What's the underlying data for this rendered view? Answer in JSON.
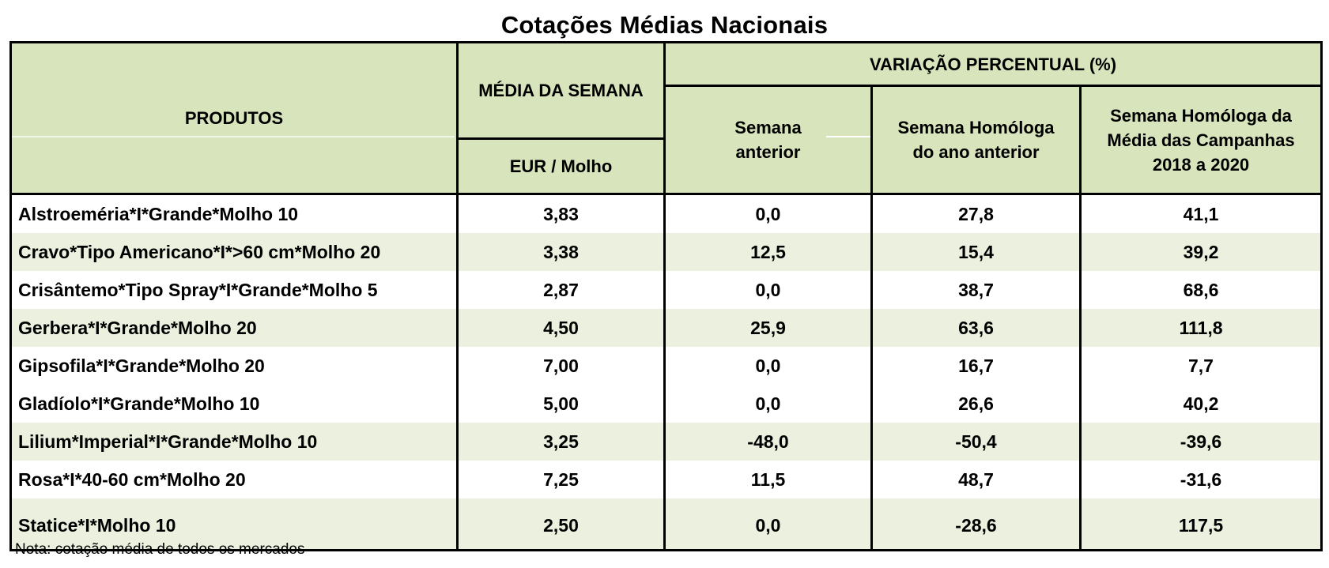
{
  "title": "Cotações Médias Nacionais",
  "header": {
    "produtos": "PRODUTOS",
    "media_semana": "MÉDIA DA SEMANA",
    "unidade": "EUR / Molho",
    "variacao": "VARIAÇÃO PERCENTUAL (%)",
    "semana_anterior_l1": "Semana",
    "semana_anterior_l2": "anterior",
    "homologa_l1": "Semana Homóloga",
    "homologa_l2": "do ano anterior",
    "campanhas_l1": "Semana Homóloga da",
    "campanhas_l2": "Média das Campanhas",
    "campanhas_l3": "2018 a 2020"
  },
  "rows": [
    {
      "produto": "Alstroeméria*I*Grande*Molho 10",
      "media": "3,83",
      "anterior": "0,0",
      "homologa": "27,8",
      "campanhas": "41,1"
    },
    {
      "produto": "Cravo*Tipo Americano*I*>60 cm*Molho 20",
      "media": "3,38",
      "anterior": "12,5",
      "homologa": "15,4",
      "campanhas": "39,2"
    },
    {
      "produto": "Crisântemo*Tipo Spray*I*Grande*Molho 5",
      "media": "2,87",
      "anterior": "0,0",
      "homologa": "38,7",
      "campanhas": "68,6"
    },
    {
      "produto": "Gerbera*I*Grande*Molho 20",
      "media": "4,50",
      "anterior": "25,9",
      "homologa": "63,6",
      "campanhas": "111,8"
    },
    {
      "produto": "Gipsofila*I*Grande*Molho 20",
      "media": "7,00",
      "anterior": "0,0",
      "homologa": "16,7",
      "campanhas": "7,7"
    },
    {
      "produto": "Gladíolo*I*Grande*Molho 10",
      "media": "5,00",
      "anterior": "0,0",
      "homologa": "26,6",
      "campanhas": "40,2"
    },
    {
      "produto": "Lilium*Imperial*I*Grande*Molho 10",
      "media": "3,25",
      "anterior": "-48,0",
      "homologa": "-50,4",
      "campanhas": "-39,6"
    },
    {
      "produto": "Rosa*I*40-60 cm*Molho 20",
      "media": "7,25",
      "anterior": "11,5",
      "homologa": "48,7",
      "campanhas": "-31,6"
    },
    {
      "produto": "Statice*I*Molho 10",
      "media": "2,50",
      "anterior": "0,0",
      "homologa": "-28,6",
      "campanhas": "117,5"
    }
  ],
  "note": "Nota: cotação média de todos os mercados",
  "colors": {
    "header_bg": "#d8e4bc",
    "band_bg": "#ebf1de",
    "border": "#000000"
  }
}
